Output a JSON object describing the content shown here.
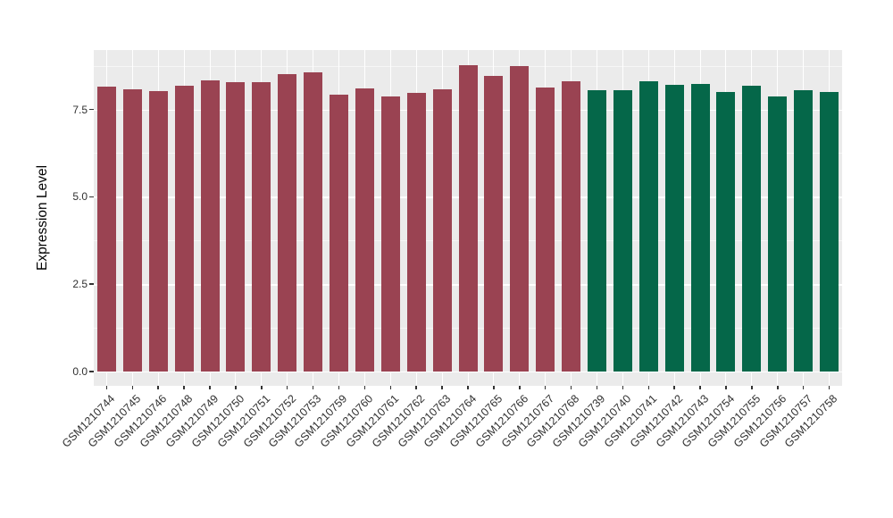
{
  "chart_data": {
    "type": "bar",
    "title": "",
    "xlabel": "",
    "ylabel": "Expression Level",
    "ylim": [
      0,
      9.2
    ],
    "yticks": [
      {
        "value": 0.0,
        "label": "0.0"
      },
      {
        "value": 2.5,
        "label": "2.5"
      },
      {
        "value": 5.0,
        "label": "5.0"
      },
      {
        "value": 7.5,
        "label": "7.5"
      }
    ],
    "minor_gridlines": [
      1.25,
      3.75,
      6.25,
      8.75
    ],
    "grid": "major and minor horizontal white lines plus vertical white line per category on gray panel",
    "legend_position": "none",
    "panel_background": "#ebebeb",
    "gridline_color": "#ffffff",
    "group_colors": {
      "maroon": "#9a4352",
      "green": "#056749"
    },
    "bars": [
      {
        "label": "GSM1210744",
        "value": 8.15,
        "group": "maroon"
      },
      {
        "label": "GSM1210745",
        "value": 8.07,
        "group": "maroon"
      },
      {
        "label": "GSM1210746",
        "value": 8.02,
        "group": "maroon"
      },
      {
        "label": "GSM1210748",
        "value": 8.17,
        "group": "maroon"
      },
      {
        "label": "GSM1210749",
        "value": 8.32,
        "group": "maroon"
      },
      {
        "label": "GSM1210750",
        "value": 8.27,
        "group": "maroon"
      },
      {
        "label": "GSM1210751",
        "value": 8.27,
        "group": "maroon"
      },
      {
        "label": "GSM1210752",
        "value": 8.5,
        "group": "maroon"
      },
      {
        "label": "GSM1210753",
        "value": 8.57,
        "group": "maroon"
      },
      {
        "label": "GSM1210759",
        "value": 7.91,
        "group": "maroon"
      },
      {
        "label": "GSM1210760",
        "value": 8.1,
        "group": "maroon"
      },
      {
        "label": "GSM1210761",
        "value": 7.88,
        "group": "maroon"
      },
      {
        "label": "GSM1210762",
        "value": 7.97,
        "group": "maroon"
      },
      {
        "label": "GSM1210763",
        "value": 8.08,
        "group": "maroon"
      },
      {
        "label": "GSM1210764",
        "value": 8.76,
        "group": "maroon"
      },
      {
        "label": "GSM1210765",
        "value": 8.47,
        "group": "maroon"
      },
      {
        "label": "GSM1210766",
        "value": 8.75,
        "group": "maroon"
      },
      {
        "label": "GSM1210767",
        "value": 8.12,
        "group": "maroon"
      },
      {
        "label": "GSM1210768",
        "value": 8.31,
        "group": "maroon"
      },
      {
        "label": "GSM1210739",
        "value": 8.04,
        "group": "green"
      },
      {
        "label": "GSM1210740",
        "value": 8.04,
        "group": "green"
      },
      {
        "label": "GSM1210741",
        "value": 8.31,
        "group": "green"
      },
      {
        "label": "GSM1210742",
        "value": 8.21,
        "group": "green"
      },
      {
        "label": "GSM1210743",
        "value": 8.24,
        "group": "green"
      },
      {
        "label": "GSM1210754",
        "value": 8.01,
        "group": "green"
      },
      {
        "label": "GSM1210755",
        "value": 8.17,
        "group": "green"
      },
      {
        "label": "GSM1210756",
        "value": 7.88,
        "group": "green"
      },
      {
        "label": "GSM1210757",
        "value": 8.06,
        "group": "green"
      },
      {
        "label": "GSM1210758",
        "value": 8.01,
        "group": "green"
      }
    ]
  }
}
